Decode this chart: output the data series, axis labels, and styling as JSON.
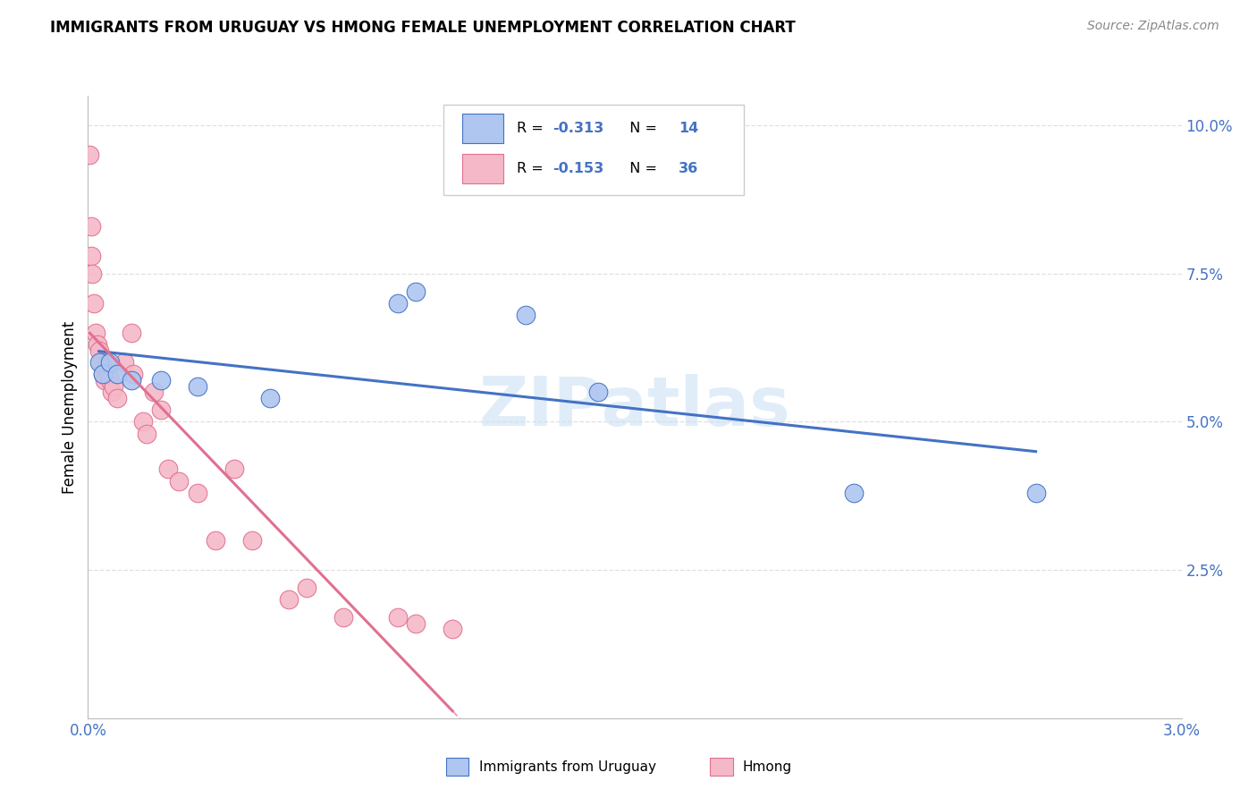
{
  "title": "IMMIGRANTS FROM URUGUAY VS HMONG FEMALE UNEMPLOYMENT CORRELATION CHART",
  "source": "Source: ZipAtlas.com",
  "ylabel": "Female Unemployment",
  "x_min": 0.0,
  "x_max": 0.03,
  "y_min": 0.0,
  "y_max": 0.105,
  "y_ticks_right": [
    0.025,
    0.05,
    0.075,
    0.1
  ],
  "y_tick_labels_right": [
    "2.5%",
    "5.0%",
    "7.5%",
    "10.0%"
  ],
  "grid_color": "#e0e0e0",
  "background_color": "#ffffff",
  "uruguay_color": "#aec6f0",
  "hmong_color": "#f5b8c8",
  "uruguay_line_color": "#4472c4",
  "hmong_line_color": "#e07090",
  "watermark": "ZIPatlas",
  "legend_R_uruguay": "-0.313",
  "legend_N_uruguay": "14",
  "legend_R_hmong": "-0.153",
  "legend_N_hmong": "36",
  "uruguay_x": [
    0.0003,
    0.0004,
    0.0006,
    0.0008,
    0.0012,
    0.002,
    0.003,
    0.005,
    0.0085,
    0.009,
    0.012,
    0.014,
    0.021,
    0.026
  ],
  "uruguay_y": [
    0.06,
    0.058,
    0.06,
    0.058,
    0.057,
    0.057,
    0.056,
    0.054,
    0.07,
    0.072,
    0.068,
    0.055,
    0.038,
    0.038
  ],
  "hmong_x": [
    5e-05,
    8e-05,
    0.0001,
    0.00012,
    0.00015,
    0.0002,
    0.00025,
    0.0003,
    0.00035,
    0.0004,
    0.00045,
    0.0005,
    0.00055,
    0.0006,
    0.00065,
    0.0007,
    0.0008,
    0.001,
    0.0012,
    0.00125,
    0.0015,
    0.0016,
    0.0018,
    0.002,
    0.0022,
    0.0025,
    0.003,
    0.0035,
    0.004,
    0.0045,
    0.0055,
    0.006,
    0.007,
    0.0085,
    0.009,
    0.01
  ],
  "hmong_y": [
    0.095,
    0.083,
    0.078,
    0.075,
    0.07,
    0.065,
    0.063,
    0.062,
    0.06,
    0.058,
    0.057,
    0.06,
    0.058,
    0.057,
    0.055,
    0.056,
    0.054,
    0.06,
    0.065,
    0.058,
    0.05,
    0.048,
    0.055,
    0.052,
    0.042,
    0.04,
    0.038,
    0.03,
    0.042,
    0.03,
    0.02,
    0.022,
    0.017,
    0.017,
    0.016,
    0.015
  ]
}
